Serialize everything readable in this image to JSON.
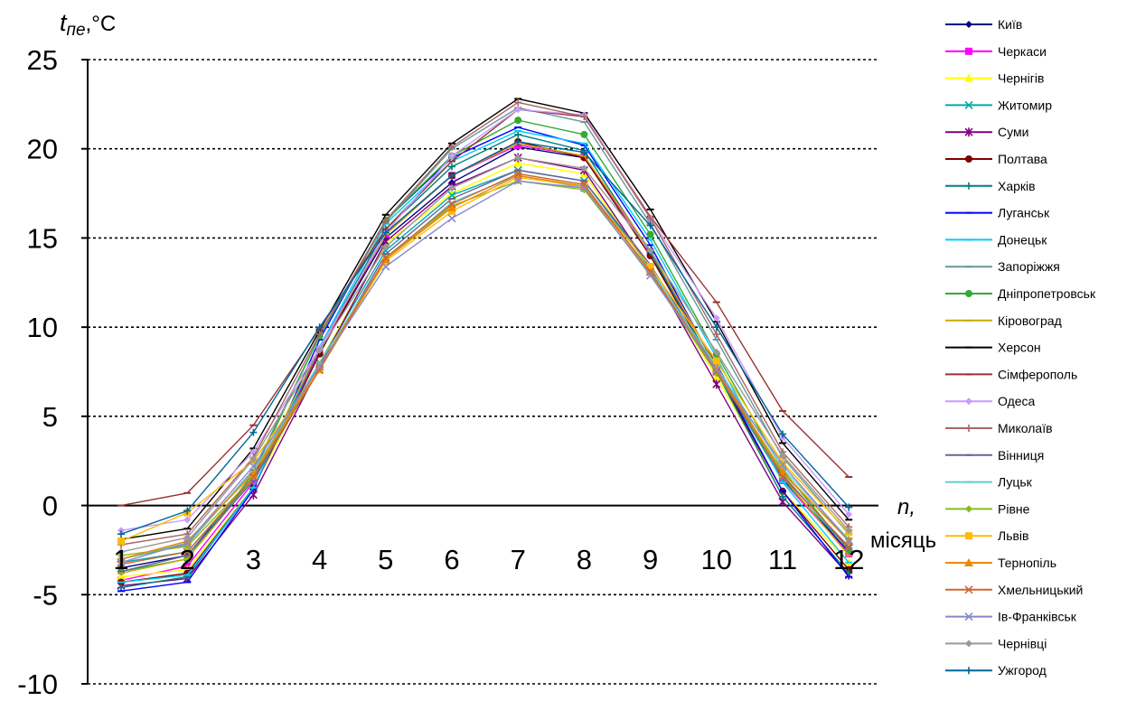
{
  "chart_data": {
    "type": "line",
    "ylabel_main": "t",
    "ylabel_sub": "пе",
    "ylabel_unit": ",°C",
    "xlabel_var": "n,",
    "xlabel_unit": "місяць",
    "ylim": [
      -10,
      25
    ],
    "yticks": [
      25,
      20,
      15,
      10,
      5,
      0,
      -5,
      -10
    ],
    "ytick_labels": [
      "25",
      "20",
      "15",
      "10",
      "5",
      "0",
      "-5",
      "-10"
    ],
    "grid": "horizontal-dotted",
    "legend_position": "right",
    "categories": [
      "1",
      "2",
      "3",
      "4",
      "5",
      "6",
      "7",
      "8",
      "9",
      "10",
      "11",
      "12"
    ],
    "series": [
      {
        "name": "Київ",
        "color": "#000080",
        "marker": "diamond",
        "values": [
          -3.5,
          -2.8,
          1.6,
          8.6,
          15.0,
          18.1,
          20.1,
          19.5,
          14.0,
          7.9,
          1.5,
          -2.6
        ]
      },
      {
        "name": "Черкаси",
        "color": "#ff00ff",
        "marker": "square",
        "values": [
          -4.2,
          -3.4,
          1.3,
          8.6,
          15.2,
          18.5,
          20.2,
          19.6,
          14.2,
          7.8,
          1.4,
          -2.7
        ]
      },
      {
        "name": "Чернігів",
        "color": "#ffff00",
        "marker": "triangle",
        "values": [
          -4.0,
          -3.6,
          1.0,
          8.0,
          14.7,
          17.5,
          19.2,
          18.6,
          13.2,
          7.2,
          0.8,
          -3.2
        ]
      },
      {
        "name": "Житомир",
        "color": "#00aaaa",
        "marker": "cross",
        "values": [
          -3.2,
          -2.6,
          1.5,
          8.0,
          14.3,
          17.4,
          18.8,
          18.2,
          13.3,
          7.5,
          1.4,
          -2.4
        ]
      },
      {
        "name": "Суми",
        "color": "#800080",
        "marker": "star",
        "values": [
          -4.5,
          -4.1,
          0.6,
          7.8,
          14.8,
          17.9,
          19.5,
          18.8,
          13.3,
          6.8,
          0.2,
          -3.9
        ]
      },
      {
        "name": "Полтава",
        "color": "#800000",
        "marker": "circle",
        "values": [
          -4.3,
          -3.8,
          1.0,
          8.5,
          15.3,
          18.5,
          20.4,
          19.5,
          14.0,
          7.5,
          0.8,
          -3.6
        ]
      },
      {
        "name": "Харків",
        "color": "#008080",
        "marker": "plus",
        "values": [
          -4.6,
          -4.0,
          1.0,
          8.8,
          15.5,
          19.0,
          20.8,
          19.9,
          14.2,
          7.5,
          0.5,
          -3.8
        ]
      },
      {
        "name": "Луганськ",
        "color": "#0000ff",
        "marker": "dash",
        "values": [
          -4.8,
          -4.3,
          0.9,
          9.3,
          16.0,
          19.5,
          21.2,
          20.2,
          14.6,
          7.7,
          0.8,
          -4.0
        ]
      },
      {
        "name": "Донецьк",
        "color": "#00ccff",
        "marker": "dash",
        "values": [
          -4.3,
          -3.9,
          1.0,
          8.9,
          15.8,
          19.3,
          21.0,
          20.3,
          14.9,
          8.3,
          1.3,
          -3.2
        ]
      },
      {
        "name": "Запоріжжя",
        "color": "#669999",
        "marker": "dash",
        "values": [
          -3.0,
          -2.2,
          2.0,
          9.5,
          15.9,
          20.0,
          22.3,
          21.5,
          15.8,
          9.3,
          2.7,
          -1.6
        ]
      },
      {
        "name": "Дніпропетровськ",
        "color": "#33aa33",
        "marker": "circle",
        "values": [
          -3.7,
          -3.0,
          1.8,
          9.5,
          16.0,
          19.6,
          21.6,
          20.8,
          15.2,
          8.5,
          2.0,
          -2.5
        ]
      },
      {
        "name": "Кіровоград",
        "color": "#ccaa00",
        "marker": "dash",
        "values": [
          -3.8,
          -3.0,
          1.5,
          8.8,
          15.2,
          18.5,
          20.3,
          19.6,
          14.3,
          7.8,
          1.6,
          -2.8
        ]
      },
      {
        "name": "Херсон",
        "color": "#000000",
        "marker": "dash",
        "values": [
          -1.9,
          -1.3,
          3.2,
          9.8,
          16.3,
          20.3,
          22.8,
          22.0,
          16.6,
          10.3,
          3.5,
          -0.8
        ]
      },
      {
        "name": "Сімферополь",
        "color": "#993333",
        "marker": "dash",
        "values": [
          0.0,
          0.7,
          4.5,
          9.9,
          15.5,
          19.3,
          22.2,
          21.8,
          16.2,
          11.4,
          5.3,
          1.6
        ]
      },
      {
        "name": "Одеса",
        "color": "#cc99ff",
        "marker": "diamond",
        "values": [
          -1.4,
          -0.8,
          3.0,
          8.8,
          15.3,
          19.6,
          22.2,
          21.9,
          16.1,
          10.5,
          3.8,
          -0.5
        ]
      },
      {
        "name": "Миколаїв",
        "color": "#aa6666",
        "marker": "plus",
        "values": [
          -2.2,
          -1.6,
          2.7,
          9.6,
          16.0,
          20.1,
          22.6,
          21.8,
          16.1,
          9.6,
          3.0,
          -1.2
        ]
      },
      {
        "name": "Вінниця",
        "color": "#666699",
        "marker": "dash",
        "values": [
          -3.7,
          -2.8,
          1.4,
          7.7,
          14.1,
          17.2,
          18.8,
          18.2,
          13.5,
          7.6,
          1.7,
          -2.4
        ]
      },
      {
        "name": "Луцьк",
        "color": "#66cccc",
        "marker": "dash",
        "values": [
          -3.0,
          -2.1,
          1.9,
          8.0,
          13.8,
          17.0,
          18.5,
          17.8,
          13.2,
          7.8,
          2.1,
          -1.9
        ]
      },
      {
        "name": "Рівне",
        "color": "#88bb22",
        "marker": "diamond",
        "values": [
          -2.8,
          -2.3,
          1.6,
          7.8,
          13.8,
          16.8,
          18.2,
          17.7,
          13.0,
          7.4,
          1.8,
          -1.9
        ]
      },
      {
        "name": "Львів",
        "color": "#ffbb00",
        "marker": "square",
        "values": [
          -2.0,
          -0.4,
          2.5,
          7.6,
          13.7,
          16.5,
          18.4,
          17.9,
          13.4,
          8.1,
          2.4,
          -1.5
        ]
      },
      {
        "name": "Тернопіль",
        "color": "#ee8800",
        "marker": "triangle",
        "values": [
          -3.0,
          -2.0,
          1.8,
          7.8,
          13.8,
          16.7,
          18.5,
          17.9,
          13.1,
          7.6,
          1.9,
          -2.0
        ]
      },
      {
        "name": "Хмельницький",
        "color": "#cc6633",
        "marker": "cross",
        "values": [
          -3.3,
          -2.6,
          1.6,
          7.6,
          13.9,
          16.9,
          18.6,
          18.0,
          13.1,
          7.5,
          1.6,
          -2.3
        ]
      },
      {
        "name": "Ів-Франківськ",
        "color": "#8888cc",
        "marker": "cross",
        "values": [
          -3.2,
          -2.1,
          2.2,
          7.8,
          13.4,
          16.1,
          18.2,
          17.8,
          12.9,
          7.6,
          2.3,
          -2.0
        ]
      },
      {
        "name": "Чернівці",
        "color": "#999999",
        "marker": "diamond",
        "values": [
          -2.6,
          -1.8,
          2.6,
          8.7,
          14.5,
          17.8,
          19.5,
          18.9,
          14.3,
          8.6,
          2.8,
          -1.4
        ]
      },
      {
        "name": "Ужгород",
        "color": "#006699",
        "marker": "plus",
        "values": [
          -1.6,
          -0.3,
          4.1,
          10.0,
          15.3,
          18.5,
          20.4,
          19.8,
          15.7,
          10.0,
          4.0,
          -0.1
        ]
      }
    ]
  }
}
